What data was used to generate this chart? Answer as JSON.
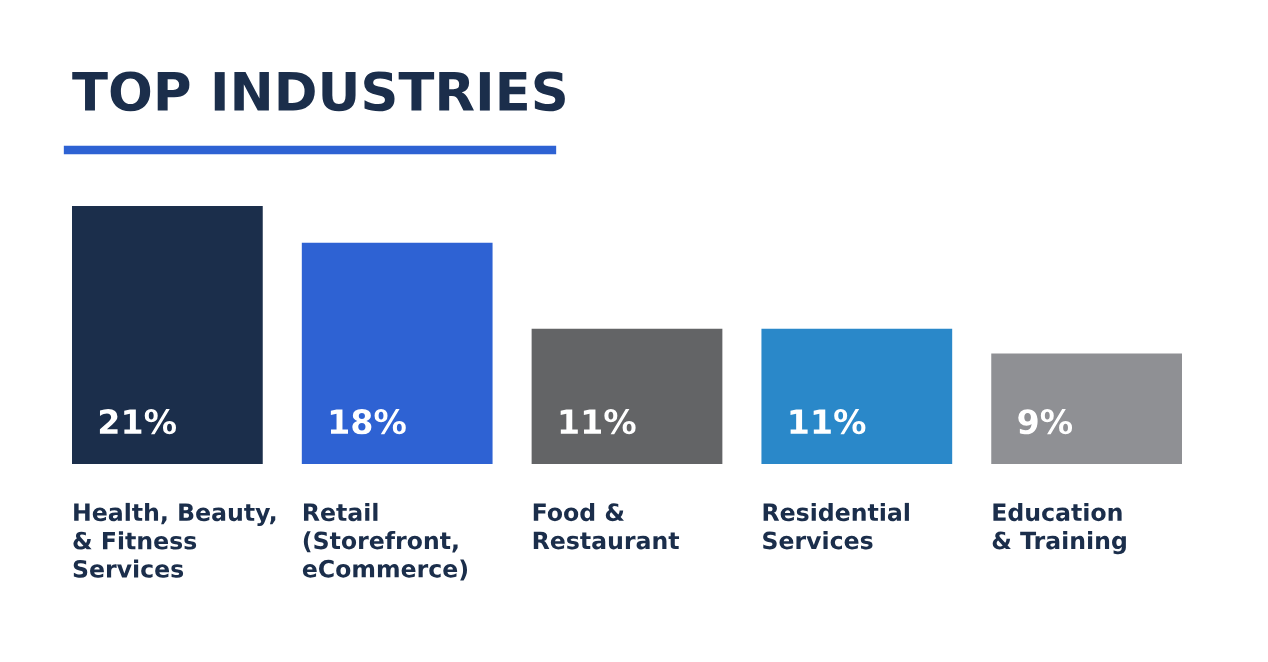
{
  "chart_data": {
    "type": "bar",
    "title": "TOP INDUSTRIES",
    "categories": [
      "Health, Beauty,\n& Fitness\nServices",
      "Retail\n(Storefront,\neCommerce)",
      "Food &\nRestaurant",
      "Residential\nServices",
      "Education\n& Training"
    ],
    "values": [
      21,
      18,
      11,
      11,
      9
    ],
    "value_labels": [
      "21%",
      "18%",
      "11%",
      "11%",
      "9%"
    ],
    "colors": [
      "#1b2e4b",
      "#2e62d3",
      "#636466",
      "#2a88c9",
      "#8f9094"
    ],
    "data_labels": true
  }
}
